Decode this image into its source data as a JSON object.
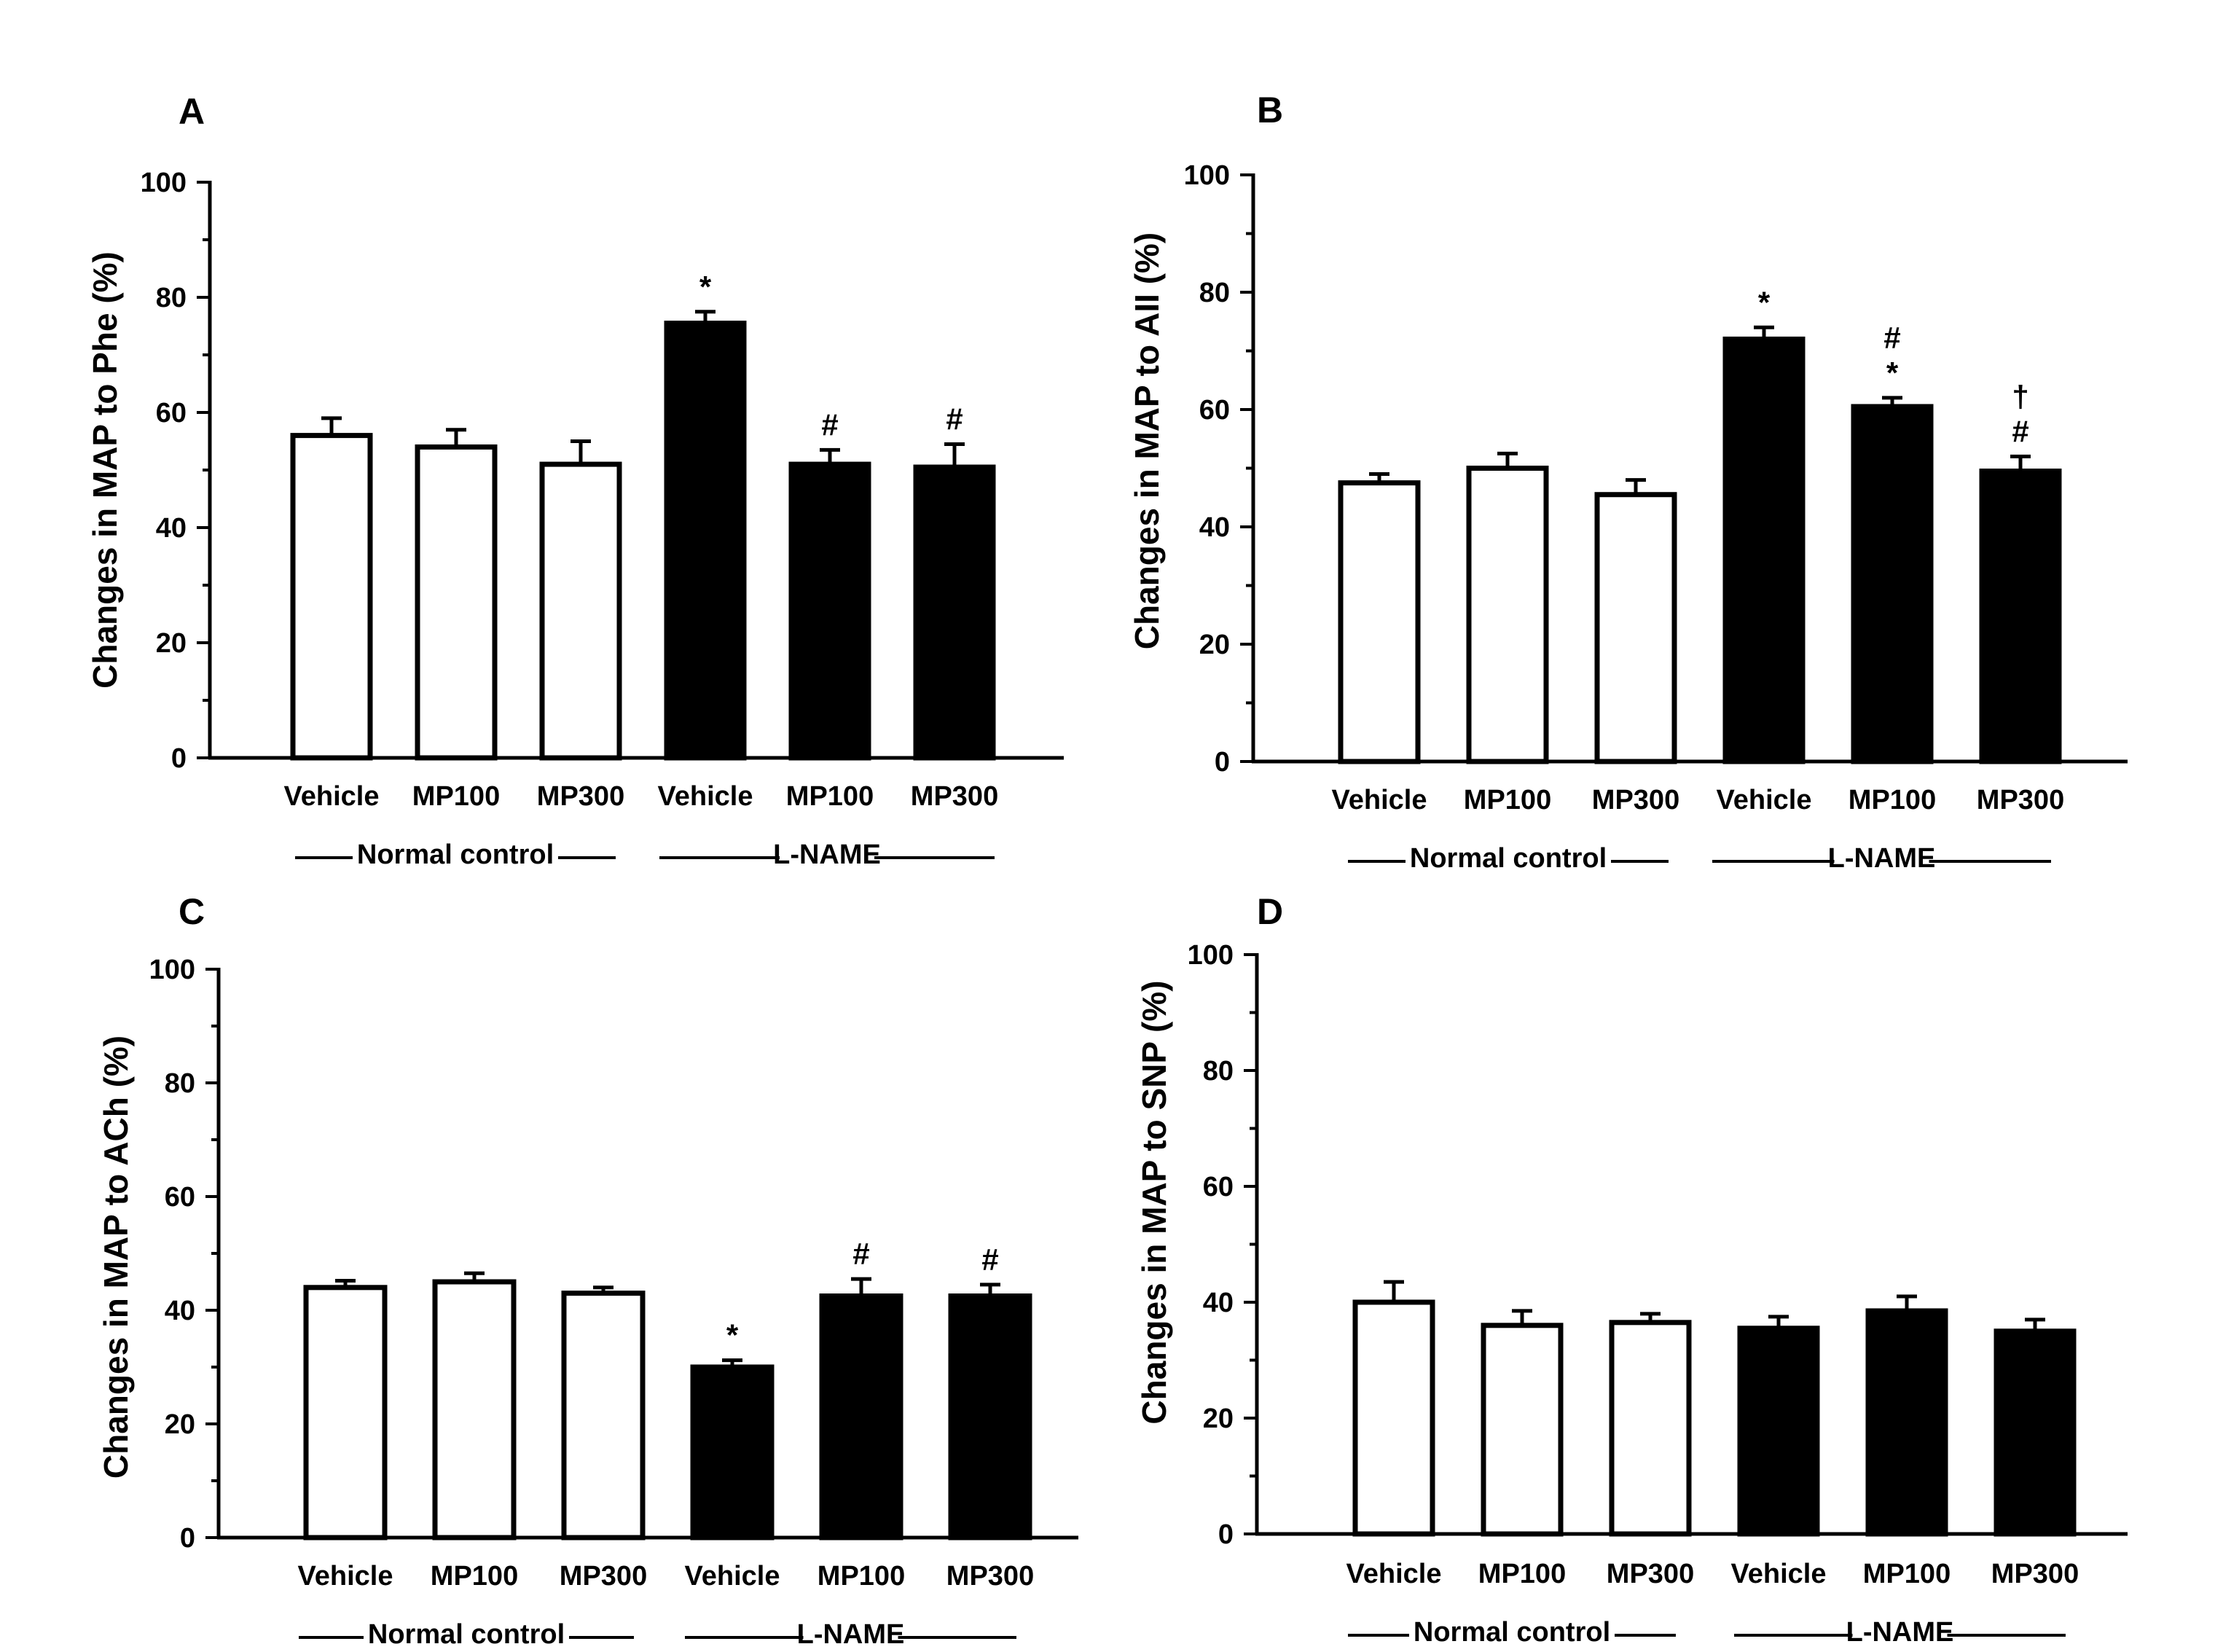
{
  "chart_data": [
    {
      "type": "bar",
      "panel": "A",
      "ylabel": "Changes in MAP to Phe (%)",
      "ylim": [
        0,
        100
      ],
      "yticks": [
        0,
        20,
        40,
        60,
        80,
        100
      ],
      "categories": [
        "Vehicle",
        "MP100",
        "MP300",
        "Vehicle",
        "MP100",
        "MP300"
      ],
      "values": [
        56,
        54,
        51,
        75.5,
        51,
        50.5
      ],
      "errors": [
        3,
        3,
        4,
        2,
        2.5,
        4
      ],
      "fill": [
        "open",
        "open",
        "open",
        "filled",
        "filled",
        "filled"
      ],
      "annotations": [
        "",
        "",
        "",
        "*",
        "#",
        "#"
      ],
      "groups": [
        {
          "label": "Normal control",
          "from": 0,
          "to": 2
        },
        {
          "label": "L-NAME",
          "from": 3,
          "to": 5
        }
      ]
    },
    {
      "type": "bar",
      "panel": "B",
      "ylabel": "Changes in MAP to AII (%)",
      "ylim": [
        0,
        100
      ],
      "yticks": [
        0,
        20,
        40,
        60,
        80,
        100
      ],
      "categories": [
        "Vehicle",
        "MP100",
        "MP300",
        "Vehicle",
        "MP100",
        "MP300"
      ],
      "values": [
        47.5,
        50,
        45.5,
        72,
        60.5,
        49.5
      ],
      "errors": [
        1.5,
        2.5,
        2.5,
        2,
        1.5,
        2.5
      ],
      "fill": [
        "open",
        "open",
        "open",
        "filled",
        "filled",
        "filled"
      ],
      "annotations": [
        "",
        "",
        "",
        "*",
        "#\n*",
        "†\n#"
      ],
      "groups": [
        {
          "label": "Normal control",
          "from": 0,
          "to": 2
        },
        {
          "label": "L-NAME",
          "from": 3,
          "to": 5
        }
      ]
    },
    {
      "type": "bar",
      "panel": "C",
      "ylabel": "Changes in MAP to ACh (%)",
      "ylim": [
        0,
        100
      ],
      "yticks": [
        0,
        20,
        40,
        60,
        80,
        100
      ],
      "categories": [
        "Vehicle",
        "MP100",
        "MP300",
        "Vehicle",
        "MP100",
        "MP300"
      ],
      "values": [
        44,
        45,
        43,
        30,
        42.5,
        42.5
      ],
      "errors": [
        1.2,
        1.5,
        1,
        1.2,
        3,
        2
      ],
      "fill": [
        "open",
        "open",
        "open",
        "filled",
        "filled",
        "filled"
      ],
      "annotations": [
        "",
        "",
        "",
        "*",
        "#",
        "#"
      ],
      "groups": [
        {
          "label": "Normal control",
          "from": 0,
          "to": 2
        },
        {
          "label": "L-NAME",
          "from": 3,
          "to": 5
        }
      ]
    },
    {
      "type": "bar",
      "panel": "D",
      "ylabel": "Changes in MAP to SNP (%)",
      "ylim": [
        0,
        100
      ],
      "yticks": [
        0,
        20,
        40,
        60,
        80,
        100
      ],
      "categories": [
        "Vehicle",
        "MP100",
        "MP300",
        "Vehicle",
        "MP100",
        "MP300"
      ],
      "values": [
        40,
        36,
        36.5,
        35.5,
        38.5,
        35
      ],
      "errors": [
        3.5,
        2.5,
        1.5,
        2,
        2.5,
        2
      ],
      "fill": [
        "open",
        "open",
        "open",
        "filled",
        "filled",
        "filled"
      ],
      "annotations": [
        "",
        "",
        "",
        "",
        "",
        ""
      ],
      "groups": [
        {
          "label": "Normal control",
          "from": 0,
          "to": 2
        },
        {
          "label": "L-NAME",
          "from": 3,
          "to": 5
        }
      ]
    }
  ],
  "colors": {
    "bar_fill_filled": "#000000",
    "bar_fill_open": "#ffffff",
    "stroke": "#000000"
  }
}
